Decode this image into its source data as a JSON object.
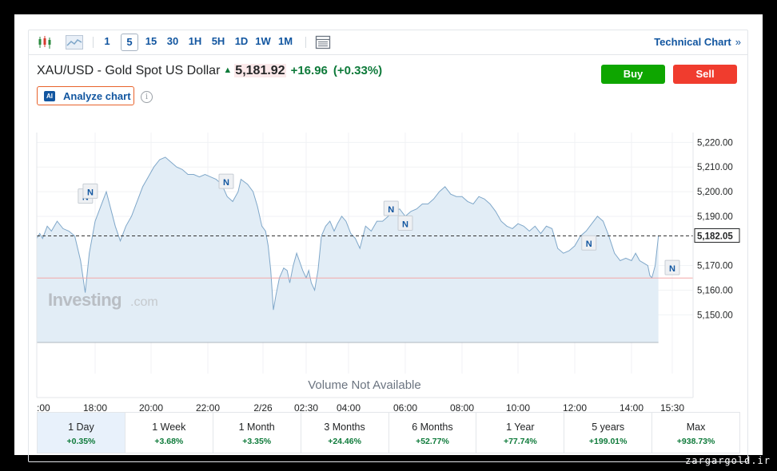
{
  "toolbar": {
    "timeframes": [
      "1",
      "5",
      "15",
      "30",
      "1H",
      "5H",
      "1D",
      "1W",
      "1M"
    ],
    "active_timeframe": "5",
    "technical_chart_label": "Technical Chart",
    "technical_chart_chevron": "»"
  },
  "instrument": {
    "name": "XAU/USD - Gold Spot US Dollar",
    "price": "5,181.92",
    "change": "+16.96",
    "change_pct": "(+0.33%)",
    "direction": "up"
  },
  "buttons": {
    "buy": "Buy",
    "sell": "Sell",
    "analyze": "Analyze chart",
    "ai_badge": "AI"
  },
  "colors": {
    "up": "#0e7a3a",
    "buy": "#0ea600",
    "sell": "#f03c2e",
    "accent": "#1256a0",
    "area_fill": "#e2edf6",
    "line": "#7fa7c9",
    "ref_line": "#f2a7a7"
  },
  "chart_data": {
    "type": "area",
    "x_tick_labels": [
      ":00",
      "18:00",
      "20:00",
      "22:00",
      "2/26",
      "02:30",
      "04:00",
      "06:00",
      "08:00",
      "10:00",
      "12:00",
      "14:00",
      "15:30"
    ],
    "y_tick_labels": [
      "5,220.00",
      "5,210.00",
      "5,200.00",
      "5,190.00",
      "5,182.05",
      "5,170.00",
      "5,160.00",
      "5,150.00"
    ],
    "y_ticks": [
      5220,
      5210,
      5200,
      5190,
      5170,
      5160,
      5150
    ],
    "ylim": [
      5143,
      5224
    ],
    "current_price_label": "5,182.05",
    "current_price": 5182.05,
    "previous_close": 5164.96,
    "volume_message": "Volume Not Available",
    "watermark": "Investing",
    "watermark_suffix": ".com",
    "news_marker_label": "N",
    "news_markers": [
      {
        "label": "N",
        "time": "17:40",
        "value": 5194
      },
      {
        "label": "N",
        "time": "17:50",
        "value": 5196
      },
      {
        "label": "N",
        "time": "22:40",
        "value": 5200
      },
      {
        "label": "N",
        "time": "05:30",
        "value": 5189
      },
      {
        "label": "N",
        "time": "06:00",
        "value": 5183
      },
      {
        "label": "N",
        "time": "12:30",
        "value": 5175
      },
      {
        "label": "N",
        "time": "15:40",
        "value": 5165
      }
    ],
    "series": [
      {
        "points": [
          [
            0,
            5181
          ],
          [
            0.05,
            5183
          ],
          [
            0.1,
            5181
          ],
          [
            0.18,
            5186
          ],
          [
            0.25,
            5184
          ],
          [
            0.35,
            5188
          ],
          [
            0.45,
            5185
          ],
          [
            0.55,
            5184
          ],
          [
            0.65,
            5182
          ],
          [
            0.75,
            5172
          ],
          [
            0.83,
            5159
          ],
          [
            0.9,
            5175
          ],
          [
            1.0,
            5188
          ],
          [
            1.1,
            5194
          ],
          [
            1.2,
            5200
          ],
          [
            1.28,
            5193
          ],
          [
            1.36,
            5186
          ],
          [
            1.45,
            5180
          ],
          [
            1.55,
            5186
          ],
          [
            1.65,
            5190
          ],
          [
            1.75,
            5196
          ],
          [
            1.85,
            5202
          ],
          [
            1.95,
            5206
          ],
          [
            2.05,
            5210
          ],
          [
            2.15,
            5213
          ],
          [
            2.25,
            5214
          ],
          [
            2.35,
            5212
          ],
          [
            2.45,
            5210
          ],
          [
            2.55,
            5209
          ],
          [
            2.65,
            5207
          ],
          [
            2.75,
            5207
          ],
          [
            2.85,
            5206
          ],
          [
            2.95,
            5207
          ],
          [
            3.05,
            5206
          ],
          [
            3.15,
            5205
          ],
          [
            3.25,
            5203
          ],
          [
            3.35,
            5198
          ],
          [
            3.45,
            5196
          ],
          [
            3.55,
            5200
          ],
          [
            3.6,
            5205
          ],
          [
            3.72,
            5203
          ],
          [
            3.82,
            5200
          ],
          [
            3.9,
            5194
          ],
          [
            3.98,
            5186
          ],
          [
            4.06,
            5184
          ],
          [
            4.12,
            5178
          ],
          [
            4.18,
            5168
          ],
          [
            4.24,
            5152
          ],
          [
            4.3,
            5158
          ],
          [
            4.38,
            5165
          ],
          [
            4.48,
            5169
          ],
          [
            4.56,
            5168
          ],
          [
            4.62,
            5163
          ],
          [
            4.7,
            5170
          ],
          [
            4.78,
            5175
          ],
          [
            4.84,
            5172
          ],
          [
            4.92,
            5168
          ],
          [
            5.0,
            5165
          ],
          [
            5.06,
            5168
          ],
          [
            5.12,
            5163
          ],
          [
            5.2,
            5160
          ],
          [
            5.28,
            5168
          ],
          [
            5.36,
            5182
          ],
          [
            5.46,
            5186
          ],
          [
            5.56,
            5188
          ],
          [
            5.66,
            5184
          ],
          [
            5.74,
            5187
          ],
          [
            5.84,
            5190
          ],
          [
            5.94,
            5188
          ],
          [
            6.04,
            5183
          ],
          [
            6.12,
            5181
          ],
          [
            6.2,
            5177
          ],
          [
            6.3,
            5186
          ],
          [
            6.4,
            5184
          ],
          [
            6.5,
            5188
          ],
          [
            6.6,
            5188
          ],
          [
            6.7,
            5190
          ],
          [
            6.8,
            5192
          ],
          [
            6.9,
            5193
          ],
          [
            7.0,
            5190
          ],
          [
            7.1,
            5192
          ],
          [
            7.2,
            5193
          ],
          [
            7.3,
            5195
          ],
          [
            7.4,
            5195
          ],
          [
            7.5,
            5197
          ],
          [
            7.6,
            5200
          ],
          [
            7.7,
            5202
          ],
          [
            7.8,
            5199
          ],
          [
            7.9,
            5198
          ],
          [
            8.0,
            5198
          ],
          [
            8.1,
            5196
          ],
          [
            8.2,
            5195
          ],
          [
            8.3,
            5198
          ],
          [
            8.4,
            5197
          ],
          [
            8.5,
            5195
          ],
          [
            8.6,
            5192
          ],
          [
            8.7,
            5188
          ],
          [
            8.8,
            5186
          ],
          [
            8.9,
            5185
          ],
          [
            9.0,
            5187
          ],
          [
            9.1,
            5186
          ],
          [
            9.2,
            5184
          ],
          [
            9.3,
            5186
          ],
          [
            9.4,
            5183
          ],
          [
            9.5,
            5186
          ],
          [
            9.6,
            5185
          ],
          [
            9.7,
            5177
          ],
          [
            9.8,
            5175
          ],
          [
            9.9,
            5176
          ],
          [
            10.0,
            5178
          ],
          [
            10.1,
            5182
          ],
          [
            10.2,
            5184
          ],
          [
            10.3,
            5187
          ],
          [
            10.4,
            5190
          ],
          [
            10.5,
            5188
          ],
          [
            10.6,
            5182
          ],
          [
            10.7,
            5175
          ],
          [
            10.8,
            5172
          ],
          [
            10.9,
            5173
          ],
          [
            11.0,
            5172
          ],
          [
            11.1,
            5175
          ],
          [
            11.2,
            5172
          ],
          [
            11.3,
            5171
          ],
          [
            11.4,
            5170
          ],
          [
            11.45,
            5166
          ],
          [
            11.5,
            5165
          ],
          [
            11.58,
            5170
          ],
          [
            11.66,
            5182
          ]
        ]
      }
    ]
  },
  "periods": [
    {
      "name": "1 Day",
      "change": "+0.35%",
      "active": true
    },
    {
      "name": "1 Week",
      "change": "+3.68%"
    },
    {
      "name": "1 Month",
      "change": "+3.35%"
    },
    {
      "name": "3 Months",
      "change": "+24.46%"
    },
    {
      "name": "6 Months",
      "change": "+52.77%"
    },
    {
      "name": "1 Year",
      "change": "+77.74%"
    },
    {
      "name": "5 years",
      "change": "+199.01%"
    },
    {
      "name": "Max",
      "change": "+938.73%"
    }
  ],
  "site_watermark": "zargargold.ir"
}
